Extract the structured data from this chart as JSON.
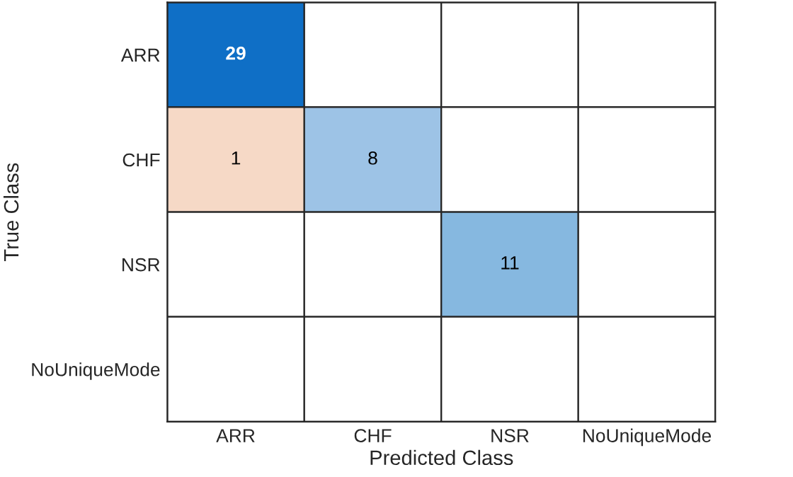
{
  "chart_data": {
    "type": "heatmap",
    "xlabel": "Predicted Class",
    "ylabel": "True Class",
    "categories": [
      "ARR",
      "CHF",
      "NSR",
      "NoUniqueMode"
    ],
    "y_categories": [
      "ARR",
      "CHF",
      "NSR",
      "NoUniqueMode"
    ],
    "cells": [
      [
        29,
        null,
        null,
        null
      ],
      [
        1,
        8,
        null,
        null
      ],
      [
        null,
        null,
        11,
        null
      ],
      [
        null,
        null,
        null,
        null
      ]
    ],
    "colors": [
      [
        "#0f6fc6",
        null,
        null,
        null
      ],
      [
        "#f6d9c6",
        "#9dc3e6",
        null,
        null
      ],
      [
        null,
        null,
        "#86b8e0",
        null
      ],
      [
        null,
        null,
        null,
        null
      ]
    ],
    "data_labels": true
  }
}
